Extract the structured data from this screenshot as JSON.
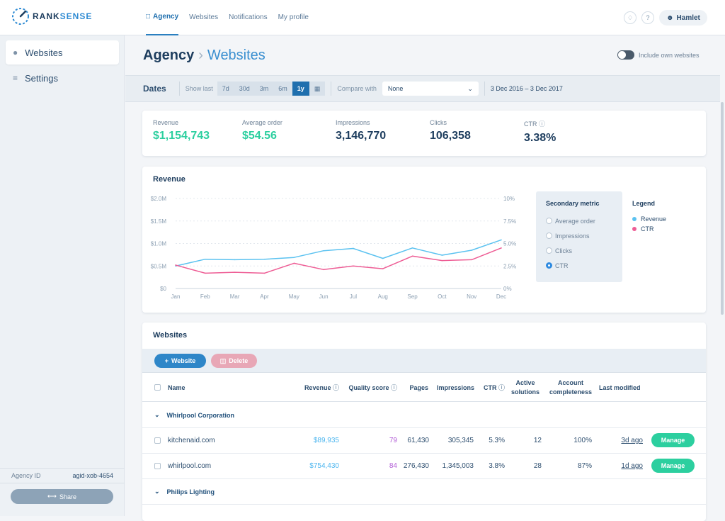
{
  "app": {
    "logo_part1": "RANK",
    "logo_part2": "SENSE"
  },
  "nav": {
    "tabs": [
      "Agency",
      "Websites",
      "Notifications",
      "My profile"
    ],
    "active": "Agency"
  },
  "user": {
    "name": "Hamlet"
  },
  "sidebar": {
    "items": [
      {
        "label": "Websites",
        "icon": "globe-icon"
      },
      {
        "label": "Settings",
        "icon": "sliders-icon"
      }
    ],
    "agency_id_label": "Agency ID",
    "agency_id": "agid-xob-4654",
    "share_label": "Share"
  },
  "header": {
    "breadcrumb_parent": "Agency",
    "breadcrumb_current": "Websites",
    "toggle_label": "Include own websites",
    "toggle_on": false
  },
  "dates": {
    "title": "Dates",
    "show_last_label": "Show last",
    "periods": [
      "7d",
      "30d",
      "3m",
      "6m",
      "1y"
    ],
    "selected_period": "1y",
    "compare_label": "Compare with",
    "compare_value": "None",
    "range": "3 Dec 2016 – 3 Dec 2017"
  },
  "kpis": [
    {
      "label": "Revenue",
      "value": "$1,154,743"
    },
    {
      "label": "Average order",
      "value": "$54.56"
    },
    {
      "label": "Impressions",
      "value": "3,146,770"
    },
    {
      "label": "Clicks",
      "value": "106,358"
    },
    {
      "label": "CTR",
      "value": "3.38%"
    }
  ],
  "revenue_card": {
    "title": "Revenue",
    "secondary_title": "Secondary metric",
    "secondary_options": [
      "Average order",
      "Impressions",
      "Clicks",
      "CTR"
    ],
    "secondary_selected": "CTR",
    "legend_title": "Legend",
    "legend_items": [
      "Revenue",
      "CTR"
    ]
  },
  "chart_data": {
    "type": "line",
    "x": [
      "Jan",
      "Feb",
      "Mar",
      "Apr",
      "May",
      "Jun",
      "Jul",
      "Aug",
      "Sep",
      "Oct",
      "Nov",
      "Dec"
    ],
    "y_left_ticks": [
      "$0",
      "$0.5M",
      "$1.0M",
      "$1.5M",
      "$2.0M"
    ],
    "y_right_ticks": [
      "0%",
      "2.5%",
      "5.0%",
      "7.5%",
      "10%"
    ],
    "ylim_left": [
      0,
      2000000
    ],
    "ylim_right": [
      0,
      10
    ],
    "series": [
      {
        "name": "Revenue",
        "axis": "left",
        "color": "#5bc2f0",
        "values": [
          500000,
          650000,
          640000,
          650000,
          690000,
          840000,
          890000,
          670000,
          900000,
          740000,
          850000,
          1080000
        ]
      },
      {
        "name": "CTR",
        "axis": "right",
        "color": "#ee5d95",
        "values": [
          2.6,
          1.7,
          1.8,
          1.7,
          2.8,
          2.1,
          2.5,
          2.2,
          3.6,
          3.1,
          3.2,
          4.5
        ]
      }
    ],
    "grid": true
  },
  "websites": {
    "title": "Websites",
    "add_label": "Website",
    "delete_label": "Delete",
    "columns": [
      "Name",
      "Revenue",
      "Quality score",
      "Pages",
      "Impressions",
      "CTR",
      "Active solutions",
      "Account completeness",
      "Last modified"
    ],
    "groups": [
      {
        "name": "Whirlpool Corporation",
        "rows": [
          {
            "name": "kitchenaid.com",
            "revenue": "$89,935",
            "quality": "79",
            "pages": "61,430",
            "impressions": "305,345",
            "ctr": "5.3%",
            "active": "12",
            "completeness": "100%",
            "modified": "3d ago"
          },
          {
            "name": "whirlpool.com",
            "revenue": "$754,430",
            "quality": "84",
            "pages": "276,430",
            "impressions": "1,345,003",
            "ctr": "3.8%",
            "active": "28",
            "completeness": "87%",
            "modified": "1d ago"
          }
        ]
      },
      {
        "name": "Philips Lighting",
        "rows": []
      }
    ],
    "manage_label": "Manage",
    "colors": {
      "revenue": "#4db6ef",
      "quality": "#b15bd6",
      "manage": "#2ccf9f",
      "delete": "#e8a7b6",
      "add": "#2e86c8"
    }
  }
}
